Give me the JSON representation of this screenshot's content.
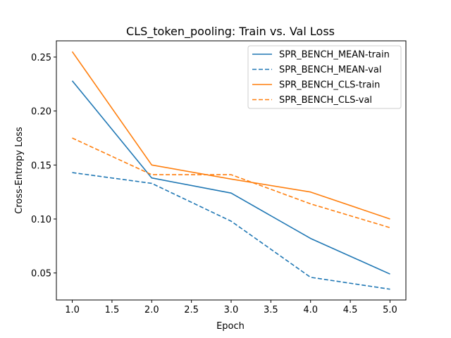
{
  "chart_data": {
    "type": "line",
    "title": "CLS_token_pooling: Train vs. Val Loss",
    "xlabel": "Epoch",
    "ylabel": "Cross-Entropy Loss",
    "xlim": [
      0.8,
      5.2
    ],
    "ylim": [
      0.025,
      0.265
    ],
    "xticks": [
      1.0,
      1.5,
      2.0,
      2.5,
      3.0,
      3.5,
      4.0,
      4.5,
      5.0
    ],
    "xtick_labels": [
      "1.0",
      "1.5",
      "2.0",
      "2.5",
      "3.0",
      "3.5",
      "4.0",
      "4.5",
      "5.0"
    ],
    "yticks": [
      0.05,
      0.1,
      0.15,
      0.2,
      0.25
    ],
    "ytick_labels": [
      "0.05",
      "0.10",
      "0.15",
      "0.20",
      "0.25"
    ],
    "grid": false,
    "legend_position": "top-right",
    "x": [
      1,
      2,
      3,
      4,
      5
    ],
    "series": [
      {
        "name": "SPR_BENCH_MEAN-train",
        "values": [
          0.228,
          0.138,
          0.124,
          0.082,
          0.049
        ],
        "color": "#1f77b4",
        "dashed": false
      },
      {
        "name": "SPR_BENCH_MEAN-val",
        "values": [
          0.143,
          0.133,
          0.098,
          0.046,
          0.035
        ],
        "color": "#1f77b4",
        "dashed": true
      },
      {
        "name": "SPR_BENCH_CLS-train",
        "values": [
          0.255,
          0.15,
          0.137,
          0.125,
          0.1
        ],
        "color": "#ff7f0e",
        "dashed": false
      },
      {
        "name": "SPR_BENCH_CLS-val",
        "values": [
          0.175,
          0.141,
          0.141,
          0.114,
          0.092
        ],
        "color": "#ff7f0e",
        "dashed": true
      }
    ]
  }
}
